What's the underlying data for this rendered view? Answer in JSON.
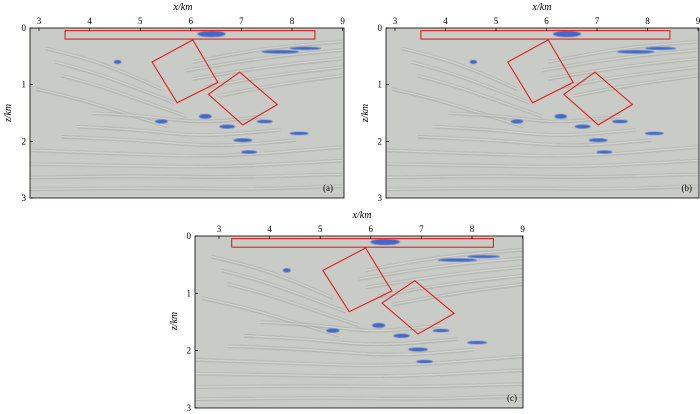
{
  "figure": {
    "panels": [
      {
        "id": "a",
        "label": "(a)",
        "xlabel": "x/km",
        "ylabel": "z/km",
        "xticks": [
          "3",
          "4",
          "5",
          "6",
          "7",
          "8",
          "9"
        ],
        "yticks": [
          "0",
          "1",
          "2",
          "3"
        ]
      },
      {
        "id": "b",
        "label": "(b)",
        "xlabel": "x/km",
        "ylabel": "z/km",
        "xticks": [
          "3",
          "4",
          "5",
          "6",
          "7",
          "8",
          "9"
        ],
        "yticks": [
          "0",
          "1",
          "2",
          "3"
        ]
      },
      {
        "id": "c",
        "label": "(c)",
        "xlabel": "x/km",
        "ylabel": "z/km",
        "xticks": [
          "3",
          "4",
          "5",
          "6",
          "7",
          "8",
          "9"
        ],
        "yticks": [
          "0",
          "1",
          "2",
          "3"
        ]
      }
    ],
    "colors": {
      "background": "#c9cbc6",
      "highlight_box": "#e0201f",
      "positive_event": "#2a56c8",
      "negative_event": "#f2f2ee",
      "dark_event": "#8d908b"
    }
  }
}
